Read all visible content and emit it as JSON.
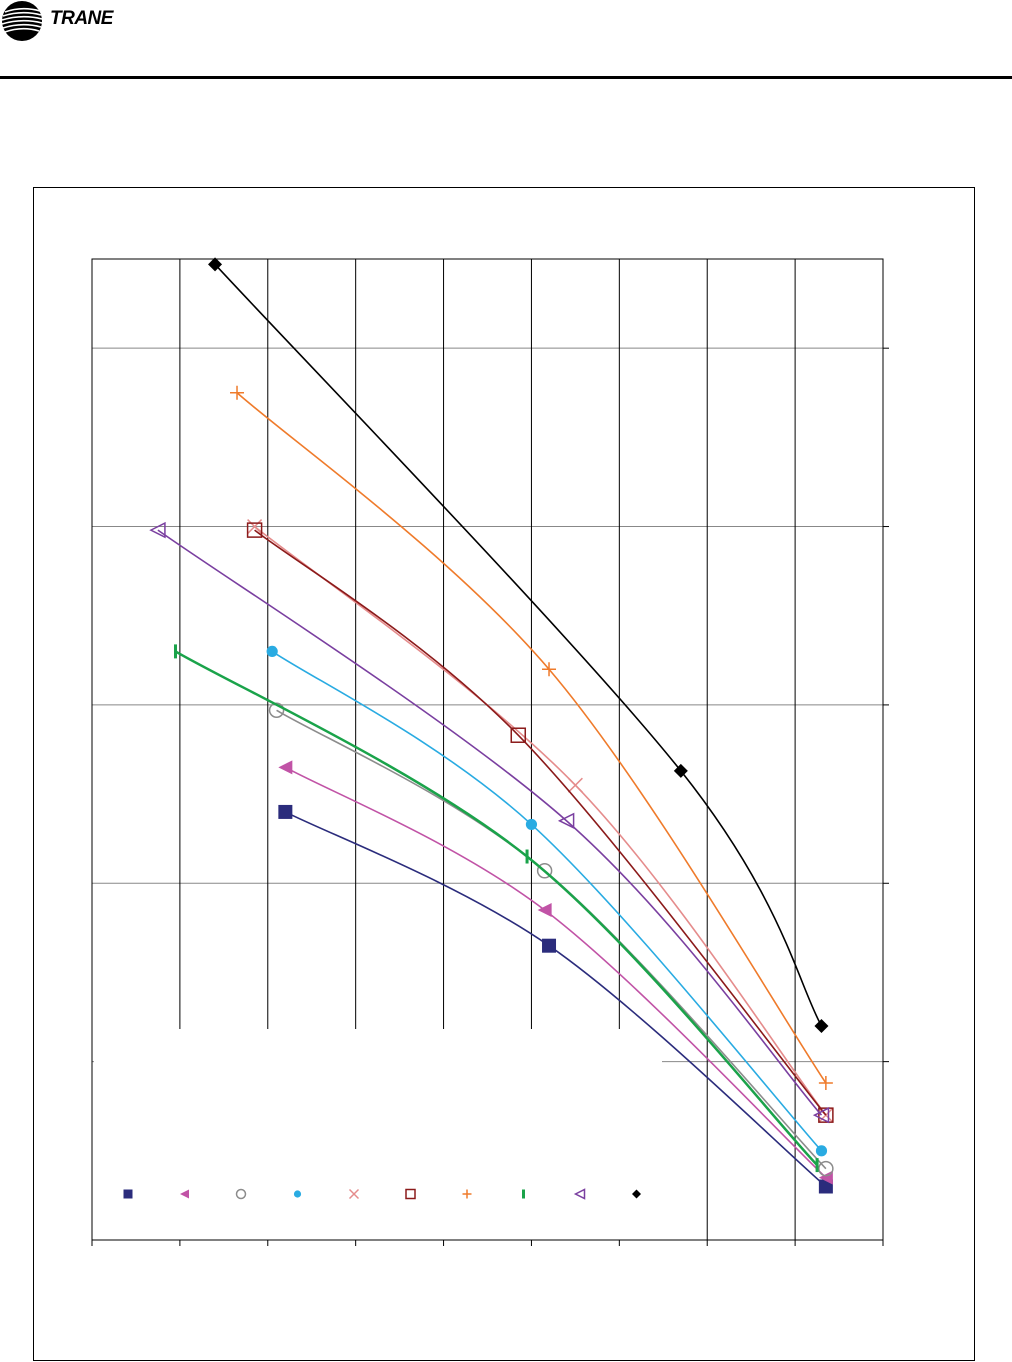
{
  "header": {
    "brand": "TRANE",
    "logo_icon": "trane-circle-logo-icon"
  },
  "chart_data": {
    "type": "line",
    "title": "",
    "xlabel": "",
    "ylabel": "",
    "xlim": [
      0,
      9
    ],
    "ylim": [
      0,
      5.5
    ],
    "x_gridlines": [
      1,
      2,
      3,
      4,
      5,
      6,
      7,
      8
    ],
    "y_gridlines": [
      1,
      2,
      3,
      4,
      5
    ],
    "grid": true,
    "legend_placement": "bottom-left",
    "series": [
      {
        "marker": "filled-square",
        "color": "#2b2c7c",
        "points": [
          [
            2.2,
            2.4
          ],
          [
            5.2,
            1.65
          ],
          [
            8.35,
            0.3
          ]
        ]
      },
      {
        "marker": "filled-triangle-left",
        "color": "#c153a6",
        "points": [
          [
            2.2,
            2.65
          ],
          [
            5.15,
            1.85
          ],
          [
            8.35,
            0.35
          ]
        ]
      },
      {
        "marker": "open-circle",
        "color": "#8c8c8c",
        "points": [
          [
            2.1,
            2.97
          ],
          [
            5.15,
            2.07
          ],
          [
            8.35,
            0.4
          ]
        ]
      },
      {
        "marker": "filled-circle",
        "color": "#29abe2",
        "points": [
          [
            2.05,
            3.3
          ],
          [
            5.0,
            2.33
          ],
          [
            8.3,
            0.5
          ]
        ]
      },
      {
        "marker": "x",
        "color": "#e58c8c",
        "points": [
          [
            1.85,
            4.0
          ],
          [
            5.5,
            2.55
          ],
          [
            8.35,
            0.7
          ]
        ]
      },
      {
        "marker": "open-square",
        "color": "#8b1a1a",
        "points": [
          [
            1.85,
            3.98
          ],
          [
            4.85,
            2.83
          ],
          [
            8.35,
            0.7
          ]
        ]
      },
      {
        "marker": "plus",
        "color": "#ef7b2b",
        "points": [
          [
            1.65,
            4.75
          ],
          [
            5.2,
            3.2
          ],
          [
            8.35,
            0.88
          ]
        ]
      },
      {
        "marker": "vertical-bar",
        "color": "#1aa34a",
        "points": [
          [
            0.95,
            3.3
          ],
          [
            4.95,
            2.15
          ],
          [
            8.25,
            0.42
          ]
        ]
      },
      {
        "marker": "open-triangle-left",
        "color": "#7a3fa0",
        "points": [
          [
            0.75,
            3.98
          ],
          [
            5.4,
            2.35
          ],
          [
            8.3,
            0.7
          ]
        ]
      },
      {
        "marker": "filled-diamond",
        "color": "#000000",
        "points": [
          [
            1.4,
            5.47
          ],
          [
            6.7,
            2.63
          ],
          [
            8.3,
            1.2
          ]
        ]
      }
    ]
  }
}
